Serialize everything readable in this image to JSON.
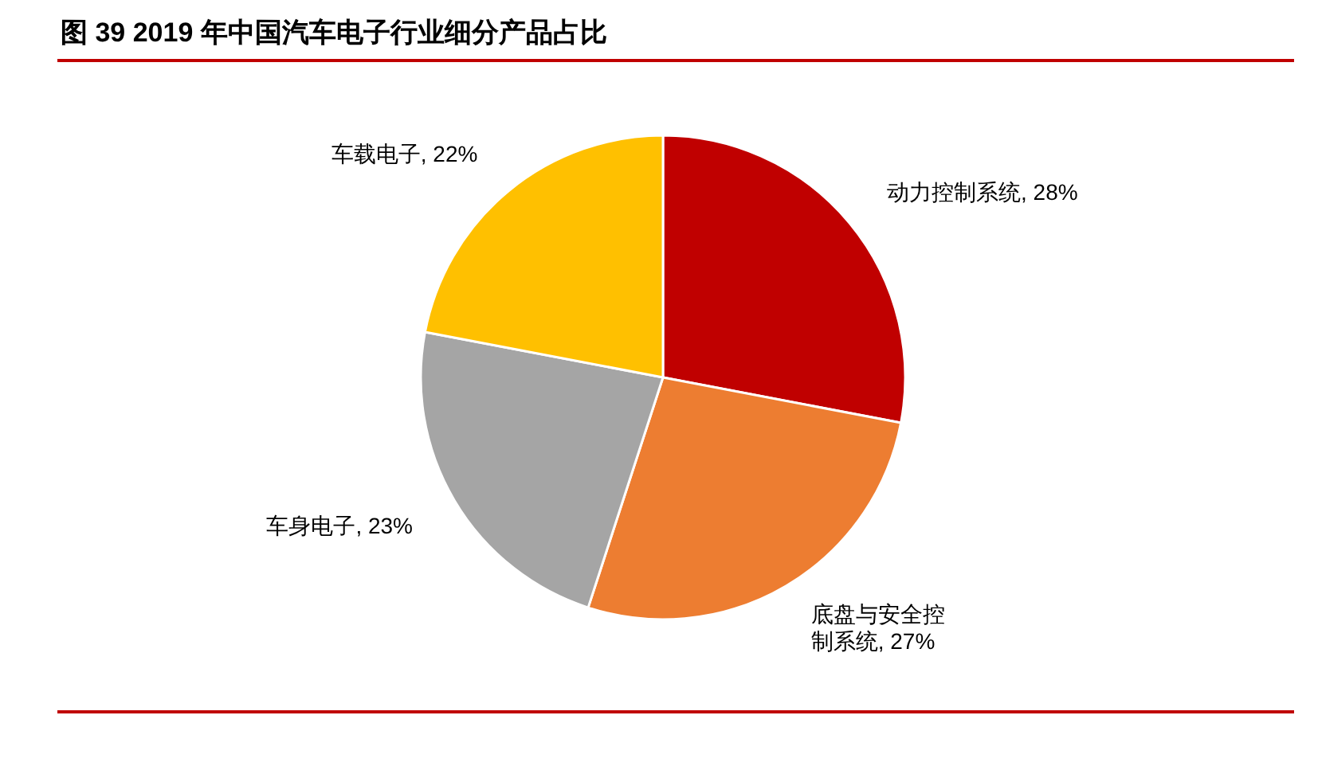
{
  "chart_data": {
    "type": "pie",
    "title": "图 39  2019 年中国汽车电子行业细分产品占比",
    "categories": [
      "动力控制系统",
      "底盘与安全控制系统",
      "车身电子",
      "车载电子"
    ],
    "values": [
      28,
      27,
      23,
      22
    ],
    "value_labels": [
      "28%",
      "27%",
      "23%",
      "22%"
    ],
    "colors": [
      "#c00000",
      "#ed7d31",
      "#a5a5a5",
      "#ffc000"
    ]
  }
}
